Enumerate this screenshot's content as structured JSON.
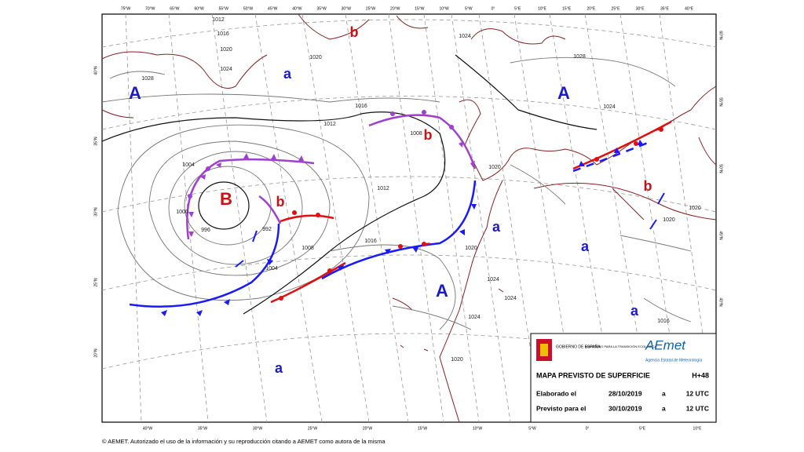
{
  "map": {
    "top_lon_labels": [
      "75°W",
      "70°W",
      "65°W",
      "60°W",
      "55°W",
      "50°W",
      "45°W",
      "40°W",
      "35°W",
      "30°W",
      "25°W",
      "20°W",
      "15°W",
      "10°W",
      "5°W",
      "0°",
      "5°E",
      "10°E",
      "15°E",
      "20°E",
      "25°E",
      "30°E",
      "35°E",
      "40°E"
    ],
    "bottom_lon_labels": [
      "40°W",
      "35°W",
      "30°W",
      "25°W",
      "20°W",
      "15°W",
      "10°W",
      "5°W",
      "0°",
      "5°E",
      "10°E"
    ],
    "left_lat_labels": [
      "40°N",
      "35°N",
      "30°N",
      "25°N",
      "20°N"
    ],
    "right_lat_labels": [
      "60°N",
      "55°N",
      "50°N",
      "45°N",
      "40°N"
    ],
    "pressure_centers": [
      "A",
      "a",
      "b",
      "A",
      "b",
      "B",
      "b",
      "b",
      "a",
      "a",
      "A",
      "a",
      "a"
    ],
    "isobar_labels": [
      "1012",
      "1016",
      "1020",
      "1028",
      "1020",
      "1024",
      "1016",
      "1012",
      "1008",
      "1004",
      "1000",
      "996",
      "992",
      "1004",
      "1008",
      "1012",
      "1016",
      "1020",
      "1024",
      "1028",
      "1024",
      "1020",
      "1024",
      "1024",
      "1024",
      "1020",
      "1016",
      "1020",
      "1020"
    ]
  },
  "info_box": {
    "gov": "GOBIERNO DE ESPAÑA",
    "ministry": "MINISTERIO PARA LA TRANSICIÓN ECOLÓGICA",
    "agency_logo": "AEmet",
    "agency": "Agencia Estatal de Meteorología",
    "title": "MAPA PREVISTO DE SUPERFICIE",
    "lead": "H+48",
    "rows": [
      [
        "Elaborado el",
        "28/10/2019",
        "a",
        "12 UTC"
      ],
      [
        "Previsto para el",
        "30/10/2019",
        "a",
        "12 UTC"
      ]
    ]
  },
  "footer": "© AEMET. Autorizado el uso de la información y su reproducción citando a AEMET como autora de la misma"
}
